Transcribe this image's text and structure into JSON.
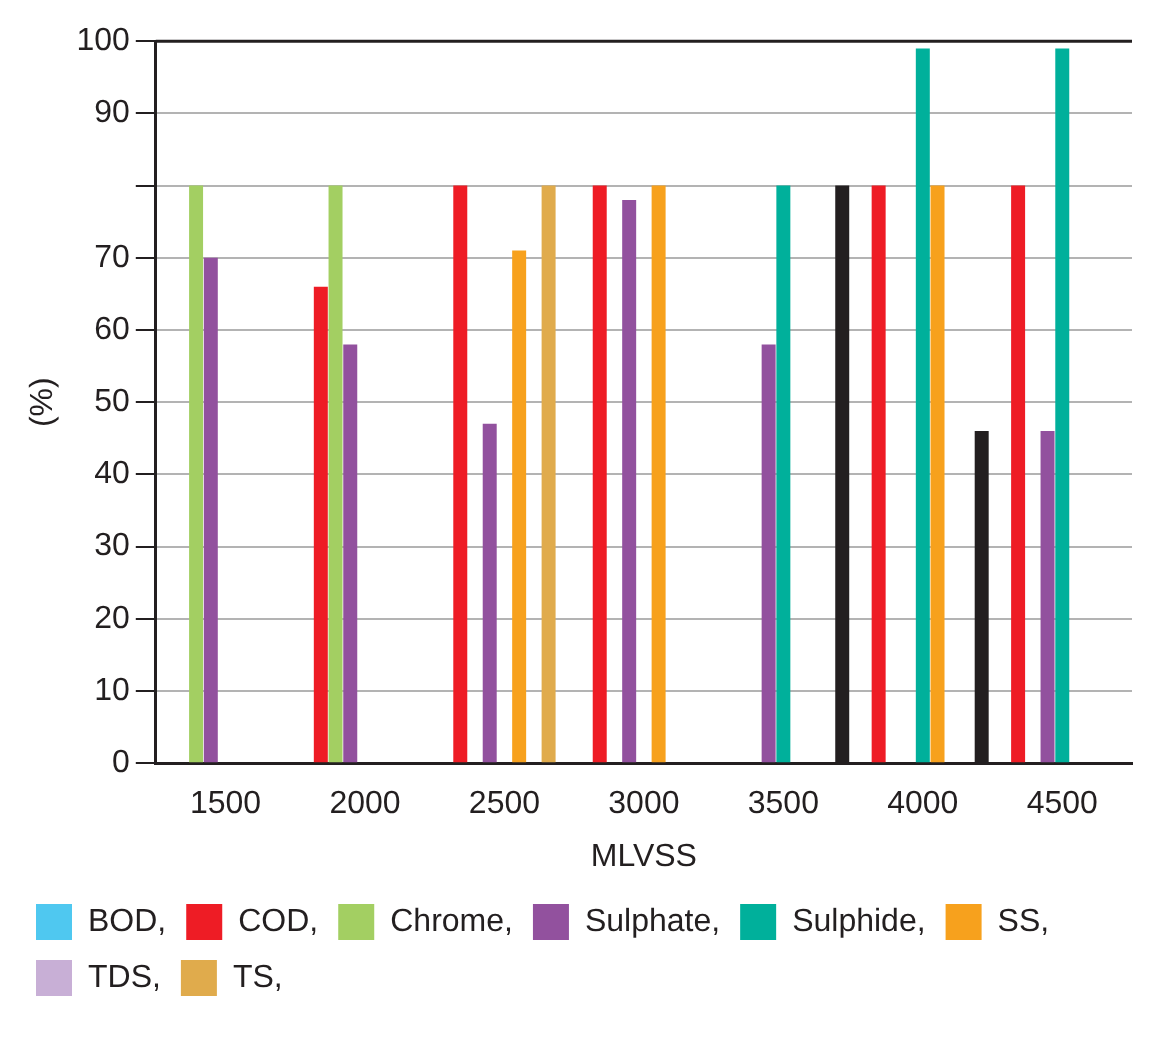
{
  "chart_data": {
    "type": "bar",
    "xlabel": "MLVSS",
    "ylabel": "(%)",
    "categories": [
      "1500",
      "2000",
      "2500",
      "3000",
      "3500",
      "4000",
      "4500"
    ],
    "series": [
      {
        "name": "BOD,",
        "color": "#4fc8f0",
        "values": [
          null,
          null,
          null,
          null,
          null,
          null,
          null
        ]
      },
      {
        "name": "COD,",
        "color": "#ee1c25",
        "values": [
          null,
          66,
          80,
          80,
          null,
          80,
          80
        ]
      },
      {
        "name": "Chrome,",
        "color": "#a3cf62",
        "values": [
          80,
          80,
          null,
          null,
          null,
          null,
          null
        ]
      },
      {
        "name": "Sulphate,",
        "color": "#92519e",
        "values": [
          70,
          58,
          47,
          78,
          58,
          null,
          46
        ]
      },
      {
        "name": "Sulphide,",
        "color": "#00b09b",
        "values": [
          null,
          null,
          null,
          null,
          80,
          99,
          99
        ]
      },
      {
        "name": "SS,",
        "color": "#f7a11d",
        "values": [
          null,
          null,
          71,
          80,
          null,
          80,
          null
        ]
      },
      {
        "name": "TDS,",
        "color": "#c8afd6",
        "values": [
          null,
          null,
          null,
          null,
          null,
          null,
          null
        ]
      },
      {
        "name": "TS,",
        "color": "#e0ab4c",
        "values": [
          null,
          null,
          80,
          null,
          null,
          null,
          null
        ]
      },
      {
        "color": "#231f20",
        "values": [
          null,
          null,
          null,
          null,
          80,
          46,
          null
        ]
      }
    ],
    "ylim": [
      0,
      100
    ],
    "yticks": [
      0,
      10,
      20,
      30,
      40,
      50,
      60,
      70,
      {
        "value": 80,
        "label": null
      },
      90,
      100
    ],
    "grid": "y",
    "legend": "bottom"
  }
}
